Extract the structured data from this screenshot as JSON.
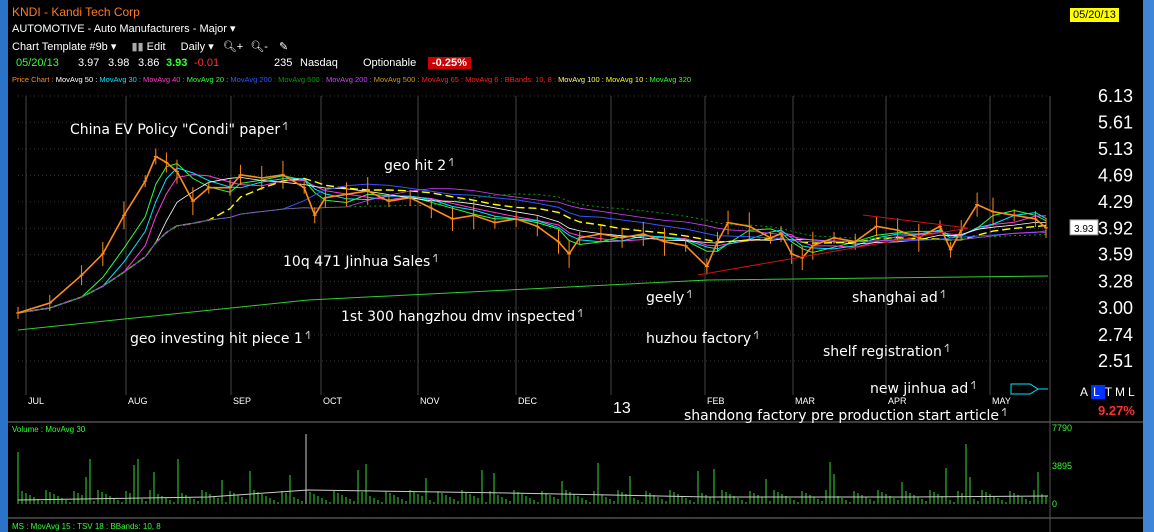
{
  "header": {
    "title": "KNDI - Kandi Tech Corp",
    "industry": "AUTOMOTIVE - Auto Manufacturers - Major",
    "date_box": "05/20/13",
    "toolbar": {
      "template": "Chart Template #9b",
      "edit": "Edit",
      "period": "Daily"
    },
    "quote": {
      "date": "05/20/13",
      "open": "3.97",
      "high": "3.98",
      "low": "3.86",
      "close": "3.93",
      "change": "-0.01",
      "volume": "235",
      "exchange": "Nasdaq",
      "optionable": "Optionable",
      "pct_change": "-0.25%"
    }
  },
  "legend": [
    {
      "label": "Price Chart",
      "color": "#ff8c1a"
    },
    {
      "label": "MovAvg 50",
      "color": "#ffffff"
    },
    {
      "label": "MovAvg 30",
      "color": "#00e5ff"
    },
    {
      "label": "MovAvg 40",
      "color": "#ff3bd4"
    },
    {
      "label": "MovAvg 20",
      "color": "#33ff33"
    },
    {
      "label": "MovAvg 200",
      "color": "#3355ff"
    },
    {
      "label": "MovAvg 500",
      "color": "#00a000"
    },
    {
      "label": "MovAvg 200",
      "color": "#d040ff"
    },
    {
      "label": "MovAvg 500",
      "color": "#c8a000"
    },
    {
      "label": "MovAvg 65",
      "color": "#ff2020"
    },
    {
      "label": "MovAvg 6",
      "color": "#ff2020"
    },
    {
      "label": "BBands: 10, 8",
      "color": "#ff2020"
    },
    {
      "label": "MovAvg 100",
      "color": "#ffff66"
    },
    {
      "label": "MovAvg 10",
      "color": "#ffff00"
    },
    {
      "label": "MovAvg 320",
      "color": "#33ff33"
    }
  ],
  "chart_data": {
    "type": "line",
    "title": "KNDI - Kandi Tech Corp",
    "x_ticks": [
      "JUL",
      "AUG",
      "SEP",
      "OCT",
      "NOV",
      "DEC",
      "13",
      "FEB",
      "MAR",
      "APR",
      "MAY"
    ],
    "y_ticks": [
      "6.13",
      "5.61",
      "5.13",
      "4.69",
      "4.29",
      "3.92",
      "3.59",
      "3.28",
      "3.00",
      "2.74",
      "2.51"
    ],
    "y_scale": "log",
    "ylim": [
      2.5,
      6.13
    ],
    "last_price": "3.93",
    "price_series": [
      {
        "x": 0,
        "y": 2.95
      },
      {
        "x": 3,
        "y": 3.05
      },
      {
        "x": 6,
        "y": 3.35
      },
      {
        "x": 8,
        "y": 3.6
      },
      {
        "x": 10,
        "y": 4.1
      },
      {
        "x": 12,
        "y": 4.6
      },
      {
        "x": 13,
        "y": 5.0
      },
      {
        "x": 14,
        "y": 4.9
      },
      {
        "x": 15,
        "y": 4.75
      },
      {
        "x": 16.5,
        "y": 4.3
      },
      {
        "x": 18,
        "y": 4.5
      },
      {
        "x": 20,
        "y": 4.5
      },
      {
        "x": 21,
        "y": 4.7
      },
      {
        "x": 23,
        "y": 4.65
      },
      {
        "x": 25,
        "y": 4.7
      },
      {
        "x": 27,
        "y": 4.5
      },
      {
        "x": 28,
        "y": 4.1
      },
      {
        "x": 29,
        "y": 4.35
      },
      {
        "x": 31,
        "y": 4.4
      },
      {
        "x": 33,
        "y": 4.45
      },
      {
        "x": 35,
        "y": 4.3
      },
      {
        "x": 37,
        "y": 4.35
      },
      {
        "x": 39,
        "y": 4.2
      },
      {
        "x": 41,
        "y": 4.05
      },
      {
        "x": 43,
        "y": 4.1
      },
      {
        "x": 45,
        "y": 4.0
      },
      {
        "x": 47,
        "y": 4.05
      },
      {
        "x": 49,
        "y": 3.95
      },
      {
        "x": 51,
        "y": 3.75
      },
      {
        "x": 52,
        "y": 3.6
      },
      {
        "x": 53,
        "y": 3.8
      },
      {
        "x": 55,
        "y": 3.85
      },
      {
        "x": 57,
        "y": 3.8
      },
      {
        "x": 59,
        "y": 3.85
      },
      {
        "x": 61,
        "y": 3.75
      },
      {
        "x": 63,
        "y": 3.7
      },
      {
        "x": 65,
        "y": 3.45
      },
      {
        "x": 66,
        "y": 3.75
      },
      {
        "x": 67,
        "y": 4.0
      },
      {
        "x": 69,
        "y": 3.95
      },
      {
        "x": 71,
        "y": 3.8
      },
      {
        "x": 72,
        "y": 3.85
      },
      {
        "x": 73,
        "y": 3.6
      },
      {
        "x": 74,
        "y": 3.55
      },
      {
        "x": 75,
        "y": 3.7
      },
      {
        "x": 77,
        "y": 3.8
      },
      {
        "x": 79,
        "y": 3.75
      },
      {
        "x": 81,
        "y": 3.95
      },
      {
        "x": 83,
        "y": 3.9
      },
      {
        "x": 85,
        "y": 3.8
      },
      {
        "x": 87,
        "y": 3.95
      },
      {
        "x": 88,
        "y": 3.65
      },
      {
        "x": 89,
        "y": 3.9
      },
      {
        "x": 90.5,
        "y": 4.25
      },
      {
        "x": 92,
        "y": 4.15
      },
      {
        "x": 94,
        "y": 4.1
      },
      {
        "x": 96,
        "y": 4.05
      },
      {
        "x": 97,
        "y": 3.93
      }
    ],
    "annotations": [
      {
        "text": "China EV Policy \"Condi\" paper",
        "x": 23,
        "y": 5.6
      },
      {
        "text": "geo hit 2",
        "x": 35,
        "y": 4.95
      },
      {
        "text": "10q 471 Jinhua Sales",
        "x": 31,
        "y": 3.55
      },
      {
        "text": "1st 300 hangzhou dmv inspected",
        "x": 42,
        "y": 2.92
      },
      {
        "text": "geo investing hit piece 1",
        "x": 19,
        "y": 2.75
      },
      {
        "text": "geely",
        "x": 62,
        "y": 3.1
      },
      {
        "text": "huzhou factory",
        "x": 65,
        "y": 2.75
      },
      {
        "text": "shanghai ad",
        "x": 84,
        "y": 3.1
      },
      {
        "text": "shelf registration",
        "x": 82,
        "y": 2.58
      },
      {
        "text": "new jinhua ad",
        "x": 85,
        "y": 2.4
      },
      {
        "text": "shandong factory pre production start article",
        "x": 73,
        "y": 2.22
      }
    ],
    "volume": {
      "label": "Volume",
      "ma_label": "MovAvg 30",
      "y_ticks": [
        "7790",
        "3895",
        "0"
      ],
      "ylim": [
        0,
        7790
      ]
    },
    "lower_panel_label": "MS : MovAvg 15 : TSV 18 : BBands: 10, 8"
  },
  "right_panel": {
    "toggles": [
      "A",
      "L",
      "T",
      "M",
      "L"
    ],
    "active_toggle": "L",
    "pct": "9.27%"
  }
}
